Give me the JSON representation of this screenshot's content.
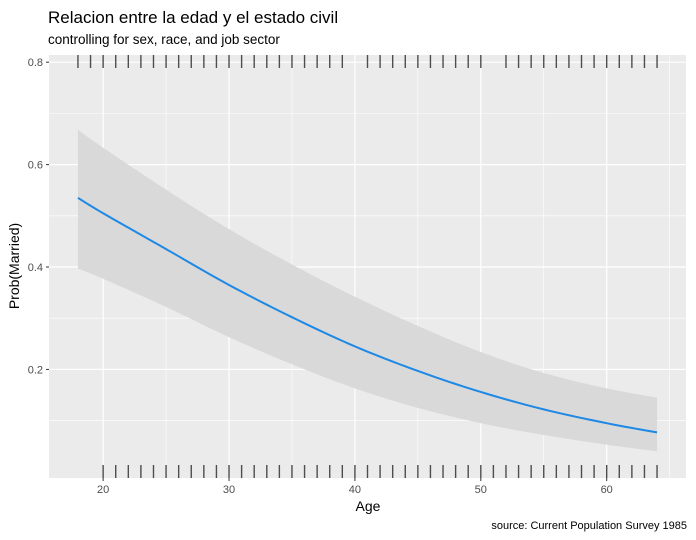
{
  "chart_data": {
    "type": "line",
    "title": "Relacion entre la edad y el estado civil",
    "subtitle": "controlling for sex, race, and job sector",
    "caption": "source: Current Population Survey 1985",
    "xlabel": "Age",
    "ylabel": "Prob(Married)",
    "xlim": [
      15.7,
      66.3
    ],
    "ylim": [
      -0.012,
      0.814
    ],
    "x_ticks": [
      20,
      30,
      40,
      50,
      60
    ],
    "x_tick_labels": [
      "20",
      "30",
      "40",
      "50",
      "60"
    ],
    "y_ticks": [
      0.2,
      0.4,
      0.6,
      0.8
    ],
    "y_tick_labels": [
      "0.2",
      "0.4",
      "0.6",
      "0.8"
    ],
    "grid": true,
    "series": [
      {
        "x": [
          18,
          20,
          25,
          30,
          35,
          40,
          45,
          50,
          55,
          60,
          64
        ],
        "y": [
          0.535,
          0.505,
          0.435,
          0.365,
          0.302,
          0.245,
          0.197,
          0.156,
          0.122,
          0.095,
          0.077
        ],
        "lower": [
          0.397,
          0.377,
          0.322,
          0.263,
          0.21,
          0.163,
          0.125,
          0.095,
          0.072,
          0.053,
          0.04
        ],
        "upper": [
          0.668,
          0.633,
          0.551,
          0.474,
          0.405,
          0.342,
          0.285,
          0.234,
          0.193,
          0.163,
          0.145
        ]
      }
    ],
    "rug_top_x": [
      18,
      19,
      20,
      21,
      22,
      23,
      24,
      25,
      26,
      27,
      28,
      29,
      30,
      31,
      32,
      33,
      34,
      35,
      36,
      37,
      38,
      39,
      41,
      42,
      43,
      44,
      45,
      46,
      47,
      48,
      49,
      50,
      52,
      53,
      54,
      55,
      56,
      57,
      58,
      59,
      60,
      61,
      62,
      63,
      64
    ],
    "rug_bottom_x": [
      20,
      21,
      22,
      23,
      24,
      25,
      26,
      27,
      28,
      29,
      30,
      31,
      32,
      33,
      34,
      35,
      36,
      37,
      38,
      39,
      40,
      41,
      42,
      43,
      44,
      45,
      46,
      47,
      48,
      49,
      50,
      51,
      52,
      53,
      54,
      55,
      56,
      57,
      58,
      59,
      60,
      61,
      62,
      63,
      64
    ],
    "colors": {
      "panel": "#ebebeb",
      "grid": "#ffffff",
      "ribbon": "#d9d9d9",
      "line": "#1e88e5",
      "rug": "#4d4d4d"
    }
  }
}
